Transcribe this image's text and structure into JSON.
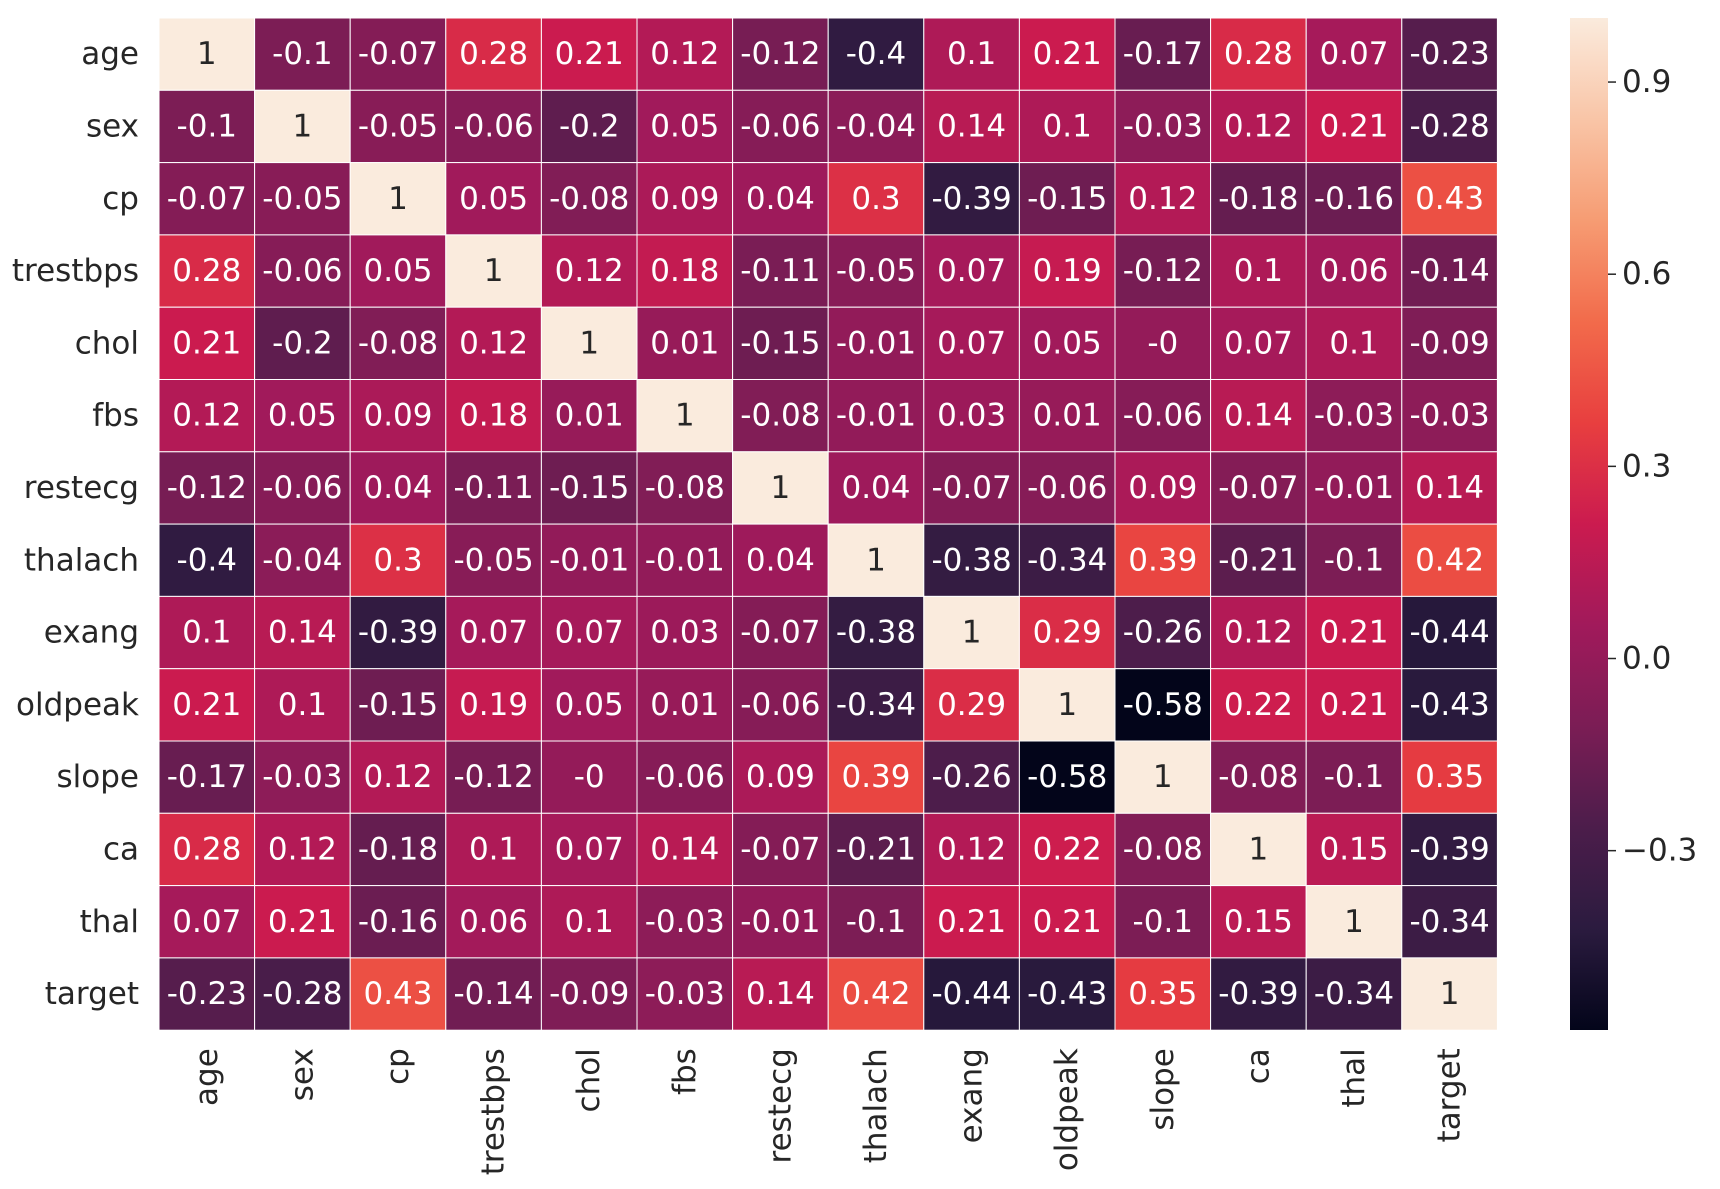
{
  "chart_data": {
    "type": "heatmap",
    "title": "",
    "xlabel": "",
    "ylabel": "",
    "x_categories": [
      "age",
      "sex",
      "cp",
      "trestbps",
      "chol",
      "fbs",
      "restecg",
      "thalach",
      "exang",
      "oldpeak",
      "slope",
      "ca",
      "thal",
      "target"
    ],
    "y_categories": [
      "age",
      "sex",
      "cp",
      "trestbps",
      "chol",
      "fbs",
      "restecg",
      "thalach",
      "exang",
      "oldpeak",
      "slope",
      "ca",
      "thal",
      "target"
    ],
    "values": [
      [
        1,
        -0.1,
        -0.07,
        0.28,
        0.21,
        0.12,
        -0.12,
        -0.4,
        0.1,
        0.21,
        -0.17,
        0.28,
        0.07,
        -0.23
      ],
      [
        -0.1,
        1,
        -0.05,
        -0.06,
        -0.2,
        0.05,
        -0.06,
        -0.04,
        0.14,
        0.1,
        -0.03,
        0.12,
        0.21,
        -0.28
      ],
      [
        -0.07,
        -0.05,
        1,
        0.05,
        -0.08,
        0.09,
        0.04,
        0.3,
        -0.39,
        -0.15,
        0.12,
        -0.18,
        -0.16,
        0.43
      ],
      [
        0.28,
        -0.06,
        0.05,
        1,
        0.12,
        0.18,
        -0.11,
        -0.05,
        0.07,
        0.19,
        -0.12,
        0.1,
        0.06,
        -0.14
      ],
      [
        0.21,
        -0.2,
        -0.08,
        0.12,
        1,
        0.01,
        -0.15,
        -0.01,
        0.07,
        0.05,
        0,
        0.07,
        0.1,
        -0.09
      ],
      [
        0.12,
        0.05,
        0.09,
        0.18,
        0.01,
        1,
        -0.08,
        -0.01,
        0.03,
        0.01,
        -0.06,
        0.14,
        -0.03,
        -0.03
      ],
      [
        -0.12,
        -0.06,
        0.04,
        -0.11,
        -0.15,
        -0.08,
        1,
        0.04,
        -0.07,
        -0.06,
        0.09,
        -0.07,
        -0.01,
        0.14
      ],
      [
        -0.4,
        -0.04,
        0.3,
        -0.05,
        -0.01,
        -0.01,
        0.04,
        1,
        -0.38,
        -0.34,
        0.39,
        -0.21,
        -0.1,
        0.42
      ],
      [
        0.1,
        0.14,
        -0.39,
        0.07,
        0.07,
        0.03,
        -0.07,
        -0.38,
        1,
        0.29,
        -0.26,
        0.12,
        0.21,
        -0.44
      ],
      [
        0.21,
        0.1,
        -0.15,
        0.19,
        0.05,
        0.01,
        -0.06,
        -0.34,
        0.29,
        1,
        -0.58,
        0.22,
        0.21,
        -0.43
      ],
      [
        -0.17,
        -0.03,
        0.12,
        -0.12,
        0,
        -0.06,
        0.09,
        0.39,
        -0.26,
        -0.58,
        1,
        -0.08,
        -0.1,
        0.35
      ],
      [
        0.28,
        0.12,
        -0.18,
        0.1,
        0.07,
        0.14,
        -0.07,
        -0.21,
        0.12,
        0.22,
        -0.08,
        1,
        0.15,
        -0.39
      ],
      [
        0.07,
        0.21,
        -0.16,
        0.06,
        0.1,
        -0.03,
        -0.01,
        -0.1,
        0.21,
        0.21,
        -0.1,
        0.15,
        1,
        -0.34
      ],
      [
        -0.23,
        -0.28,
        0.43,
        -0.14,
        -0.09,
        -0.03,
        0.14,
        0.42,
        -0.44,
        -0.43,
        0.35,
        -0.39,
        -0.34,
        1
      ]
    ],
    "value_labels": [
      [
        "1",
        "-0.1",
        "-0.07",
        "0.28",
        "0.21",
        "0.12",
        "-0.12",
        "-0.4",
        "0.1",
        "0.21",
        "-0.17",
        "0.28",
        "0.07",
        "-0.23"
      ],
      [
        "-0.1",
        "1",
        "-0.05",
        "-0.06",
        "-0.2",
        "0.05",
        "-0.06",
        "-0.04",
        "0.14",
        "0.1",
        "-0.03",
        "0.12",
        "0.21",
        "-0.28"
      ],
      [
        "-0.07",
        "-0.05",
        "1",
        "0.05",
        "-0.08",
        "0.09",
        "0.04",
        "0.3",
        "-0.39",
        "-0.15",
        "0.12",
        "-0.18",
        "-0.16",
        "0.43"
      ],
      [
        "0.28",
        "-0.06",
        "0.05",
        "1",
        "0.12",
        "0.18",
        "-0.11",
        "-0.05",
        "0.07",
        "0.19",
        "-0.12",
        "0.1",
        "0.06",
        "-0.14"
      ],
      [
        "0.21",
        "-0.2",
        "-0.08",
        "0.12",
        "1",
        "0.01",
        "-0.15",
        "-0.01",
        "0.07",
        "0.05",
        "-0",
        "0.07",
        "0.1",
        "-0.09"
      ],
      [
        "0.12",
        "0.05",
        "0.09",
        "0.18",
        "0.01",
        "1",
        "-0.08",
        "-0.01",
        "0.03",
        "0.01",
        "-0.06",
        "0.14",
        "-0.03",
        "-0.03"
      ],
      [
        "-0.12",
        "-0.06",
        "0.04",
        "-0.11",
        "-0.15",
        "-0.08",
        "1",
        "0.04",
        "-0.07",
        "-0.06",
        "0.09",
        "-0.07",
        "-0.01",
        "0.14"
      ],
      [
        "-0.4",
        "-0.04",
        "0.3",
        "-0.05",
        "-0.01",
        "-0.01",
        "0.04",
        "1",
        "-0.38",
        "-0.34",
        "0.39",
        "-0.21",
        "-0.1",
        "0.42"
      ],
      [
        "0.1",
        "0.14",
        "-0.39",
        "0.07",
        "0.07",
        "0.03",
        "-0.07",
        "-0.38",
        "1",
        "0.29",
        "-0.26",
        "0.12",
        "0.21",
        "-0.44"
      ],
      [
        "0.21",
        "0.1",
        "-0.15",
        "0.19",
        "0.05",
        "0.01",
        "-0.06",
        "-0.34",
        "0.29",
        "1",
        "-0.58",
        "0.22",
        "0.21",
        "-0.43"
      ],
      [
        "-0.17",
        "-0.03",
        "0.12",
        "-0.12",
        "-0",
        "-0.06",
        "0.09",
        "0.39",
        "-0.26",
        "-0.58",
        "1",
        "-0.08",
        "-0.1",
        "0.35"
      ],
      [
        "0.28",
        "0.12",
        "-0.18",
        "0.1",
        "0.07",
        "0.14",
        "-0.07",
        "-0.21",
        "0.12",
        "0.22",
        "-0.08",
        "1",
        "0.15",
        "-0.39"
      ],
      [
        "0.07",
        "0.21",
        "-0.16",
        "0.06",
        "0.1",
        "-0.03",
        "-0.01",
        "-0.1",
        "0.21",
        "0.21",
        "-0.1",
        "0.15",
        "1",
        "-0.34"
      ],
      [
        "-0.23",
        "-0.28",
        "0.43",
        "-0.14",
        "-0.09",
        "-0.03",
        "0.14",
        "0.42",
        "-0.44",
        "-0.43",
        "0.35",
        "-0.39",
        "-0.34",
        "1"
      ]
    ],
    "colorbar": {
      "range": [
        -0.58,
        1
      ],
      "ticks": [
        0.9,
        0.6,
        0.3,
        0.0,
        -0.3
      ],
      "tick_labels": [
        "0.9",
        "0.6",
        "0.3",
        "0.0",
        "−0.3"
      ],
      "colormap": "rocket",
      "colormap_stops": [
        "#03051a",
        "#2b1b3f",
        "#4c1d4b",
        "#7b1d55",
        "#a11a5b",
        "#cb1b4f",
        "#e83f3f",
        "#f26b4b",
        "#f69c73",
        "#f9c5a7",
        "#faebdd"
      ]
    },
    "cell_border_color": "#ffffff",
    "annotations_shown": true
  }
}
